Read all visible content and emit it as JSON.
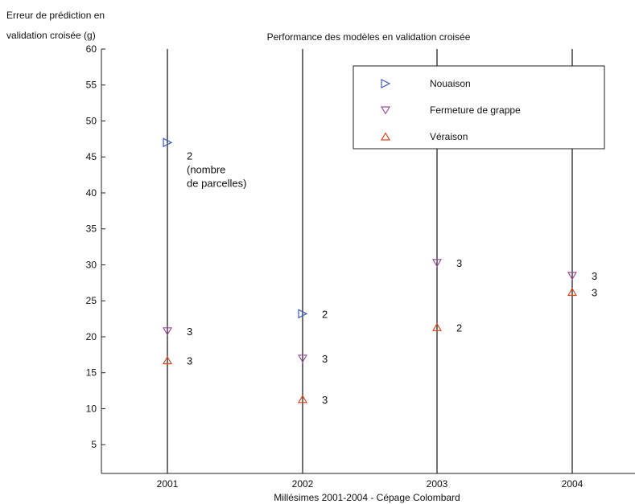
{
  "chart_data": {
    "type": "scatter",
    "title": "Performance des modèles en validation croisée",
    "ylabel": [
      "Erreur de prédiction en",
      "validation croisée (g)"
    ],
    "xlabel": "Millésimes 2001-2004 - Cépage Colombard",
    "categories": [
      "2001",
      "2002",
      "2003",
      "2004"
    ],
    "ylim": [
      1,
      60
    ],
    "yticks": [
      5,
      10,
      15,
      20,
      25,
      30,
      35,
      40,
      45,
      50,
      55,
      60
    ],
    "grid": false,
    "legend_position": "top-right",
    "series": [
      {
        "name": "Nouaison",
        "marker": "triangle-right",
        "color": "#3b5bbf",
        "points": [
          {
            "x": "2001",
            "y": 47,
            "label": [
              "2",
              "(nombre",
              "de parcelles)"
            ]
          },
          {
            "x": "2002",
            "y": 23.2,
            "label": [
              "2"
            ]
          }
        ]
      },
      {
        "name": "Fermeture de grappe",
        "marker": "triangle-down",
        "color": "#9a4f9a",
        "points": [
          {
            "x": "2001",
            "y": 20.8,
            "label": [
              "3"
            ]
          },
          {
            "x": "2002",
            "y": 17,
            "label": [
              "3"
            ]
          },
          {
            "x": "2003",
            "y": 30.3,
            "label": [
              "3"
            ]
          },
          {
            "x": "2004",
            "y": 28.5,
            "label": [
              "3"
            ]
          }
        ]
      },
      {
        "name": "Véraison",
        "marker": "triangle-up",
        "color": "#d9461c",
        "points": [
          {
            "x": "2001",
            "y": 16.7,
            "label": [
              "3"
            ]
          },
          {
            "x": "2002",
            "y": 11.3,
            "label": [
              "3"
            ]
          },
          {
            "x": "2003",
            "y": 21.3,
            "label": [
              "2"
            ]
          },
          {
            "x": "2004",
            "y": 26.2,
            "label": [
              "3"
            ]
          }
        ]
      }
    ]
  }
}
